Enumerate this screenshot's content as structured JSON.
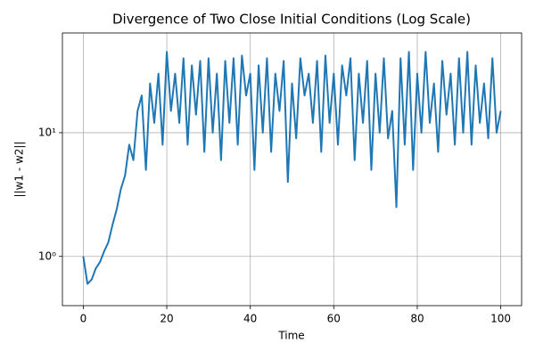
{
  "chart_data": {
    "type": "line",
    "title": "Divergence of Two Close Initial Conditions (Log Scale)",
    "x_label": "Time",
    "y_label": "||w1 - w2||",
    "color": "#1f77b4",
    "log_y": true,
    "grid": true,
    "x": [
      0,
      1,
      2,
      3,
      4,
      5,
      6,
      7,
      8,
      9,
      10,
      11,
      12,
      13,
      14,
      15,
      16,
      17,
      18,
      19,
      20,
      21,
      22,
      23,
      24,
      25,
      26,
      27,
      28,
      29,
      30,
      31,
      32,
      33,
      34,
      35,
      36,
      37,
      38,
      39,
      40,
      41,
      42,
      43,
      44,
      45,
      46,
      47,
      48,
      49,
      50,
      51,
      52,
      53,
      54,
      55,
      56,
      57,
      58,
      59,
      60,
      61,
      62,
      63,
      64,
      65,
      66,
      67,
      68,
      69,
      70,
      71,
      72,
      73,
      74,
      75,
      76,
      77,
      78,
      79,
      80,
      81,
      82,
      83,
      84,
      85,
      86,
      87,
      88,
      89,
      90,
      91,
      92,
      93,
      94,
      95,
      96,
      97,
      98,
      99,
      100
    ],
    "values": [
      1.0,
      0.6,
      0.65,
      0.8,
      0.9,
      1.1,
      1.3,
      1.8,
      2.4,
      3.5,
      4.5,
      8,
      6,
      15,
      20,
      5,
      25,
      12,
      30,
      8,
      45,
      15,
      30,
      12,
      40,
      8,
      35,
      14,
      38,
      7,
      40,
      10,
      30,
      6,
      38,
      12,
      40,
      8,
      42,
      20,
      30,
      5,
      35,
      10,
      40,
      7,
      30,
      15,
      38,
      4,
      25,
      9,
      40,
      20,
      30,
      12,
      38,
      7,
      42,
      12,
      30,
      8,
      35,
      20,
      40,
      6,
      30,
      12,
      38,
      5,
      30,
      10,
      40,
      9,
      15,
      2.5,
      40,
      8,
      45,
      5,
      30,
      10,
      45,
      12,
      25,
      7,
      38,
      14,
      30,
      8,
      40,
      10,
      45,
      8,
      35,
      12,
      25,
      9,
      40,
      10,
      15
    ],
    "xlim": [
      -5,
      105
    ],
    "xticks": [
      0,
      20,
      40,
      60,
      80,
      100
    ],
    "ylim": [
      0.4,
      64
    ],
    "yticks": [
      {
        "value": 1,
        "label": "10⁰"
      },
      {
        "value": 10,
        "label": "10¹"
      }
    ]
  }
}
